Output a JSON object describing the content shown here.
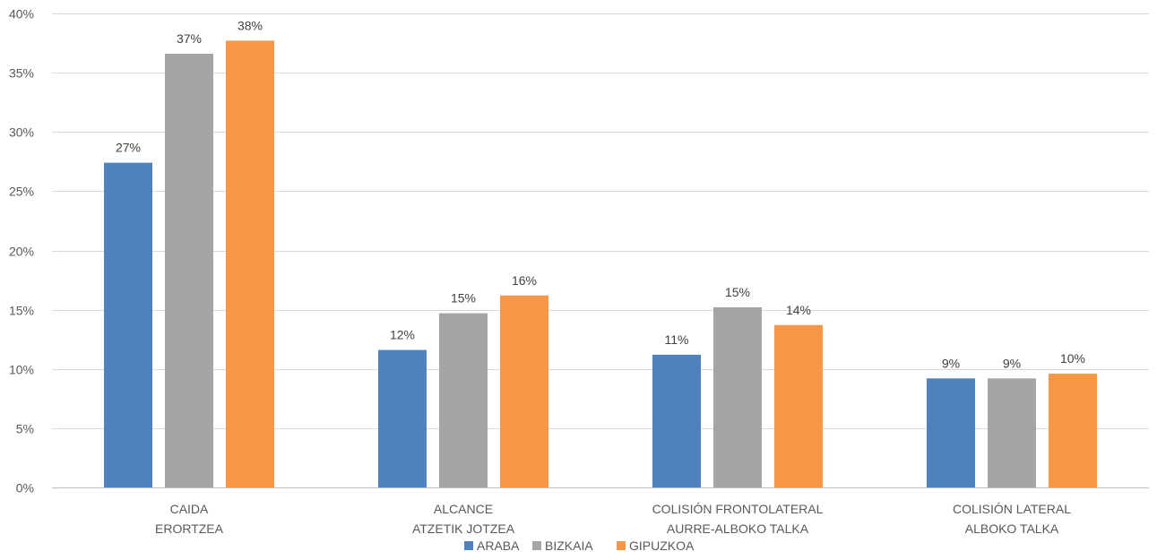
{
  "chart_data": {
    "type": "bar",
    "categories": [
      [
        "CAIDA",
        "ERORTZEA"
      ],
      [
        "ALCANCE",
        "ATZETIK JOTZEA"
      ],
      [
        "COLISIÓN FRONTOLATERAL",
        "AURRE-ALBOKO TALKA"
      ],
      [
        "COLISIÓN LATERAL",
        "ALBOKO TALKA"
      ]
    ],
    "series": [
      {
        "name": "ARABA",
        "color": "#4f81bd",
        "values": [
          27.4,
          11.6,
          11.2,
          9.2
        ],
        "labels": [
          "27%",
          "12%",
          "11%",
          "9%"
        ]
      },
      {
        "name": "BIZKAIA",
        "color": "#a5a5a5",
        "values": [
          36.6,
          14.7,
          15.2,
          9.2
        ],
        "labels": [
          "37%",
          "15%",
          "15%",
          "9%"
        ]
      },
      {
        "name": "GIPUZKOA",
        "color": "#f79646",
        "values": [
          37.7,
          16.2,
          13.7,
          9.6
        ],
        "labels": [
          "38%",
          "16%",
          "14%",
          "10%"
        ]
      }
    ],
    "ylim": [
      0,
      40
    ],
    "yticks": [
      "0%",
      "5%",
      "10%",
      "15%",
      "20%",
      "25%",
      "30%",
      "35%",
      "40%"
    ],
    "ytick_values": [
      0,
      5,
      10,
      15,
      20,
      25,
      30,
      35,
      40
    ],
    "grid": true,
    "legend": "bottom"
  }
}
